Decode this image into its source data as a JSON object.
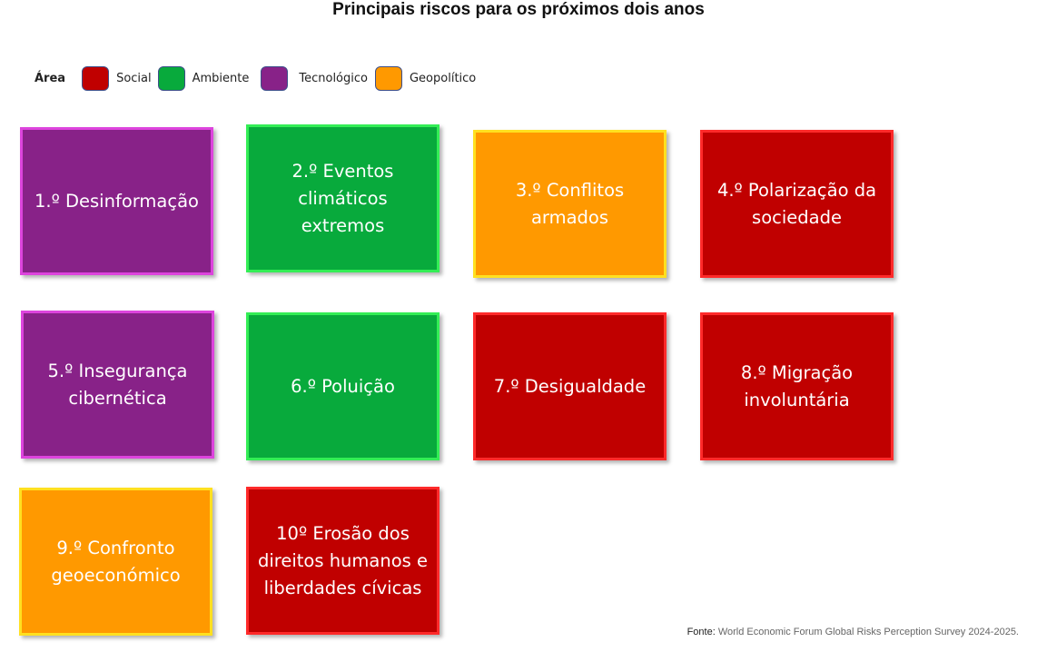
{
  "title": "Principais riscos para os próximos dois anos",
  "legend": {
    "label": "Área",
    "items": [
      {
        "label": "Social",
        "color": "#c00000"
      },
      {
        "label": "Ambiente",
        "color": "#08aa3c"
      },
      {
        "label": "Tecnológico",
        "color": "#882288"
      },
      {
        "label": "Geopolítico",
        "color": "#ff9900"
      }
    ]
  },
  "risks": [
    {
      "label": "1.º Desinformação",
      "area": "Tecnológico"
    },
    {
      "label": "2.º Eventos climáticos extremos",
      "area": "Ambiente"
    },
    {
      "label": "3.º Conflitos armados",
      "area": "Geopolítico"
    },
    {
      "label": "4.º Polarização da sociedade",
      "area": "Social"
    },
    {
      "label": "5.º Insegurança cibernética",
      "area": "Tecnológico"
    },
    {
      "label": "6.º Poluição",
      "area": "Ambiente"
    },
    {
      "label": "7.º Desigualdade",
      "area": "Social"
    },
    {
      "label": "8.º Migração involuntária",
      "area": "Social"
    },
    {
      "label": "9.º Confronto geoeconómico",
      "area": "Geopolítico"
    },
    {
      "label": "10º Erosão dos direitos humanos e liberdades cívicas",
      "area": "Social"
    }
  ],
  "source": {
    "label": "Fonte:",
    "text": " World Economic Forum Global Risks Perception Survey 2024-2025."
  }
}
